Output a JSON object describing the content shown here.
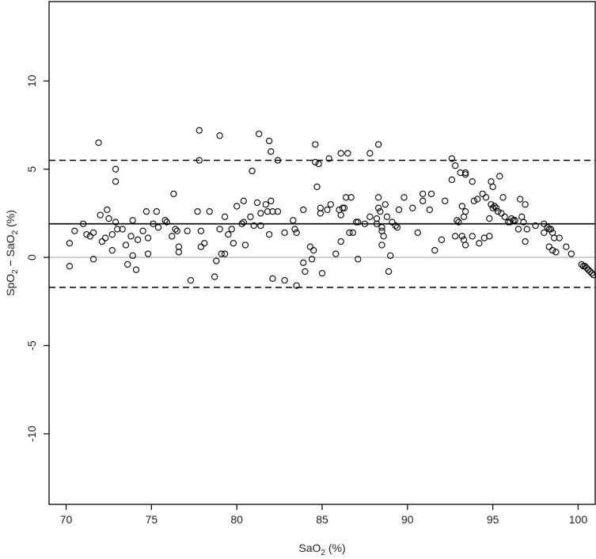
{
  "chart_data": {
    "type": "scatter",
    "title": "",
    "xlabel_main": "SaO",
    "xlabel_sub": "2",
    "xlabel_tail": " (%)",
    "ylabel_a": "SpO",
    "ylabel_a_sub": "2",
    "ylabel_mid": " − SaO",
    "ylabel_b_sub": "2",
    "ylabel_tail": " (%)",
    "xlim": [
      69,
      101
    ],
    "ylim": [
      -14,
      14.5
    ],
    "xticks": [
      70,
      75,
      80,
      85,
      90,
      95,
      100
    ],
    "yticks": [
      -10,
      -5,
      0,
      5,
      10
    ],
    "xtick_labels": [
      "70",
      "75",
      "80",
      "85",
      "90",
      "95",
      "100"
    ],
    "ytick_labels": [
      "-10",
      "-5",
      "0",
      "5",
      "10"
    ],
    "grid": false,
    "reference_lines": {
      "mean": 1.9,
      "upper_loa": 5.5,
      "lower_loa": -1.7,
      "zero": 0
    },
    "colors": {
      "points": "#000000",
      "mean_line": "#000000",
      "loa_line": "#000000",
      "zero_line": "#bbbbbb"
    },
    "points": [
      [
        70.2,
        0.8
      ],
      [
        70.2,
        -0.5
      ],
      [
        70.5,
        1.5
      ],
      [
        71.0,
        1.9
      ],
      [
        71.2,
        1.3
      ],
      [
        71.4,
        1.2
      ],
      [
        71.6,
        1.4
      ],
      [
        71.6,
        -0.1
      ],
      [
        71.9,
        6.5
      ],
      [
        72.0,
        2.4
      ],
      [
        72.1,
        0.9
      ],
      [
        72.3,
        1.1
      ],
      [
        72.4,
        2.7
      ],
      [
        72.5,
        2.2
      ],
      [
        72.7,
        1.3
      ],
      [
        72.7,
        0.4
      ],
      [
        72.9,
        5.0
      ],
      [
        72.9,
        4.3
      ],
      [
        72.9,
        2.0
      ],
      [
        73.0,
        1.6
      ],
      [
        73.3,
        1.6
      ],
      [
        73.5,
        0.7
      ],
      [
        73.6,
        -0.4
      ],
      [
        73.8,
        1.2
      ],
      [
        73.9,
        2.1
      ],
      [
        73.9,
        0.1
      ],
      [
        74.1,
        -0.7
      ],
      [
        74.2,
        1.0
      ],
      [
        74.5,
        1.5
      ],
      [
        74.7,
        2.6
      ],
      [
        74.8,
        1.1
      ],
      [
        74.8,
        0.2
      ],
      [
        75.1,
        1.9
      ],
      [
        75.3,
        2.6
      ],
      [
        75.4,
        1.7
      ],
      [
        75.8,
        2.1
      ],
      [
        75.9,
        2.0
      ],
      [
        76.2,
        1.2
      ],
      [
        76.3,
        3.6
      ],
      [
        76.4,
        1.6
      ],
      [
        76.5,
        1.5
      ],
      [
        76.6,
        0.6
      ],
      [
        76.6,
        0.3
      ],
      [
        77.1,
        1.5
      ],
      [
        77.3,
        -1.3
      ],
      [
        77.7,
        2.6
      ],
      [
        77.8,
        7.2
      ],
      [
        77.8,
        5.5
      ],
      [
        77.9,
        1.5
      ],
      [
        77.9,
        0.6
      ],
      [
        78.1,
        0.8
      ],
      [
        78.4,
        2.6
      ],
      [
        78.7,
        -1.1
      ],
      [
        78.8,
        -0.2
      ],
      [
        79.0,
        6.9
      ],
      [
        79.0,
        1.6
      ],
      [
        79.1,
        0.2
      ],
      [
        79.3,
        2.3
      ],
      [
        79.3,
        0.2
      ],
      [
        79.5,
        1.3
      ],
      [
        79.7,
        1.6
      ],
      [
        79.8,
        0.8
      ],
      [
        80.0,
        2.9
      ],
      [
        80.3,
        1.9
      ],
      [
        80.4,
        3.2
      ],
      [
        80.4,
        2.0
      ],
      [
        80.5,
        0.7
      ],
      [
        80.8,
        2.3
      ],
      [
        80.9,
        4.9
      ],
      [
        81.0,
        1.8
      ],
      [
        81.2,
        3.1
      ],
      [
        81.3,
        7.0
      ],
      [
        81.4,
        1.8
      ],
      [
        81.4,
        2.5
      ],
      [
        81.7,
        3.0
      ],
      [
        81.8,
        2.6
      ],
      [
        81.9,
        6.6
      ],
      [
        81.9,
        1.3
      ],
      [
        82.0,
        6.0
      ],
      [
        82.0,
        3.2
      ],
      [
        82.1,
        2.6
      ],
      [
        82.1,
        -1.2
      ],
      [
        82.4,
        5.5
      ],
      [
        82.4,
        2.6
      ],
      [
        82.8,
        1.4
      ],
      [
        82.8,
        -1.3
      ],
      [
        83.3,
        2.1
      ],
      [
        83.4,
        1.6
      ],
      [
        83.5,
        1.4
      ],
      [
        83.5,
        -1.6
      ],
      [
        83.9,
        2.7
      ],
      [
        83.9,
        -0.3
      ],
      [
        84.0,
        -0.8
      ],
      [
        84.3,
        0.6
      ],
      [
        84.4,
        -0.1
      ],
      [
        84.5,
        0.4
      ],
      [
        84.6,
        6.4
      ],
      [
        84.6,
        5.4
      ],
      [
        84.7,
        4.0
      ],
      [
        84.8,
        5.3
      ],
      [
        84.9,
        2.8
      ],
      [
        84.9,
        2.5
      ],
      [
        85.0,
        -0.9
      ],
      [
        85.3,
        2.7
      ],
      [
        85.4,
        5.6
      ],
      [
        85.5,
        3.0
      ],
      [
        85.8,
        0.2
      ],
      [
        86.0,
        2.7
      ],
      [
        86.1,
        5.9
      ],
      [
        86.1,
        2.4
      ],
      [
        86.1,
        0.9
      ],
      [
        86.2,
        2.8
      ],
      [
        86.3,
        2.8
      ],
      [
        86.4,
        3.4
      ],
      [
        86.5,
        5.9
      ],
      [
        86.6,
        1.4
      ],
      [
        86.7,
        3.4
      ],
      [
        86.8,
        1.4
      ],
      [
        87.0,
        2.0
      ],
      [
        87.1,
        2.0
      ],
      [
        87.1,
        -0.1
      ],
      [
        87.5,
        1.9
      ],
      [
        87.8,
        5.9
      ],
      [
        87.8,
        2.3
      ],
      [
        88.2,
        2.2
      ],
      [
        88.2,
        1.9
      ],
      [
        88.3,
        6.4
      ],
      [
        88.3,
        3.4
      ],
      [
        88.3,
        2.8
      ],
      [
        88.4,
        2.6
      ],
      [
        88.5,
        1.7
      ],
      [
        88.5,
        1.5
      ],
      [
        88.5,
        0.7
      ],
      [
        88.6,
        1.2
      ],
      [
        88.7,
        3.0
      ],
      [
        88.8,
        2.3
      ],
      [
        88.9,
        -0.8
      ],
      [
        89.0,
        0.1
      ],
      [
        89.1,
        2.0
      ],
      [
        89.3,
        1.8
      ],
      [
        89.4,
        1.7
      ],
      [
        89.5,
        2.7
      ],
      [
        89.8,
        3.4
      ],
      [
        90.3,
        2.8
      ],
      [
        90.6,
        1.4
      ],
      [
        90.9,
        3.6
      ],
      [
        90.9,
        3.2
      ],
      [
        91.3,
        2.7
      ],
      [
        91.4,
        3.6
      ],
      [
        91.6,
        0.4
      ],
      [
        92.0,
        1.0
      ],
      [
        92.2,
        3.2
      ],
      [
        92.6,
        5.6
      ],
      [
        92.6,
        4.4
      ],
      [
        92.8,
        5.2
      ],
      [
        92.8,
        1.2
      ],
      [
        92.9,
        2.1
      ],
      [
        93.0,
        2.0
      ],
      [
        93.1,
        4.8
      ],
      [
        93.2,
        2.9
      ],
      [
        93.2,
        1.2
      ],
      [
        93.3,
        2.3
      ],
      [
        93.3,
        1.0
      ],
      [
        93.4,
        4.8
      ],
      [
        93.4,
        4.7
      ],
      [
        93.4,
        2.6
      ],
      [
        93.4,
        0.7
      ],
      [
        93.8,
        4.3
      ],
      [
        93.8,
        1.2
      ],
      [
        93.9,
        3.2
      ],
      [
        94.1,
        3.3
      ],
      [
        94.2,
        0.8
      ],
      [
        94.4,
        3.6
      ],
      [
        94.5,
        1.1
      ],
      [
        94.6,
        3.4
      ],
      [
        94.8,
        2.2
      ],
      [
        94.8,
        1.2
      ],
      [
        94.9,
        4.3
      ],
      [
        94.9,
        3.0
      ],
      [
        95.0,
        4.0
      ],
      [
        95.0,
        2.8
      ],
      [
        95.1,
        2.9
      ],
      [
        95.2,
        2.8
      ],
      [
        95.3,
        2.6
      ],
      [
        95.4,
        4.6
      ],
      [
        95.5,
        2.5
      ],
      [
        95.6,
        3.4
      ],
      [
        95.7,
        2.3
      ],
      [
        95.9,
        2.0
      ],
      [
        96.0,
        2.0
      ],
      [
        96.1,
        2.2
      ],
      [
        96.2,
        2.1
      ],
      [
        96.3,
        2.1
      ],
      [
        96.5,
        1.6
      ],
      [
        96.6,
        3.3
      ],
      [
        96.7,
        2.3
      ],
      [
        96.8,
        2.0
      ],
      [
        96.9,
        3.0
      ],
      [
        96.9,
        0.9
      ],
      [
        97.0,
        1.6
      ],
      [
        97.5,
        1.8
      ],
      [
        98.0,
        1.9
      ],
      [
        98.0,
        1.4
      ],
      [
        98.2,
        1.7
      ],
      [
        98.3,
        1.6
      ],
      [
        98.3,
        0.6
      ],
      [
        98.4,
        1.6
      ],
      [
        98.5,
        1.4
      ],
      [
        98.5,
        0.4
      ],
      [
        98.6,
        1.1
      ],
      [
        98.7,
        0.3
      ],
      [
        98.9,
        1.1
      ],
      [
        99.3,
        0.6
      ],
      [
        99.6,
        0.2
      ],
      [
        100.2,
        -0.4
      ],
      [
        100.3,
        -0.5
      ],
      [
        100.4,
        -0.5
      ],
      [
        100.5,
        -0.6
      ],
      [
        100.6,
        -0.7
      ],
      [
        100.7,
        -0.8
      ],
      [
        100.8,
        -0.9
      ],
      [
        100.9,
        -1.0
      ]
    ]
  }
}
